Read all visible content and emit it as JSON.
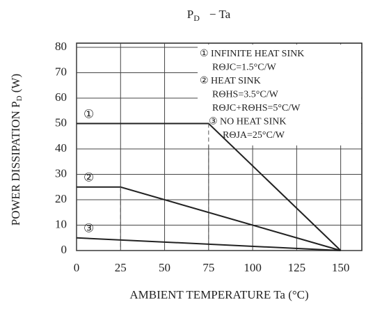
{
  "chart_data": {
    "type": "line",
    "title": {
      "main": "P",
      "sub": "D",
      "rest": "− Ta"
    },
    "y_label": {
      "main": "POWER DISSIPATION P",
      "sub": "D",
      "rest": " (W)"
    },
    "x_label": "AMBIENT TEMPERATURE Ta (°C)",
    "series": [
      {
        "name": "①",
        "color": "#222222",
        "x": [
          0,
          75,
          150
        ],
        "values": [
          50,
          50,
          0
        ]
      },
      {
        "name": "②",
        "color": "#222222",
        "x": [
          0,
          25,
          150
        ],
        "values": [
          25,
          25,
          0
        ]
      },
      {
        "name": "③",
        "color": "#222222",
        "x": [
          0,
          150
        ],
        "values": [
          5,
          0
        ]
      }
    ],
    "annotations": [
      "① INFINITE HEAT SINK",
      "RΘJC=1.5°C/W",
      "② HEAT SINK",
      "RΘHS=3.5°C/W",
      "RΘJC+RΘHS=5°C/W",
      "③ NO HEAT SINK",
      "RΘJA=25°C/W"
    ],
    "xlim": [
      0,
      162
    ],
    "xticks": [
      0,
      25,
      50,
      75,
      100,
      125,
      150
    ],
    "ylim": [
      0,
      80
    ],
    "yticks": [
      0,
      10,
      20,
      30,
      40,
      50,
      60,
      70,
      80
    ],
    "grid": true
  }
}
